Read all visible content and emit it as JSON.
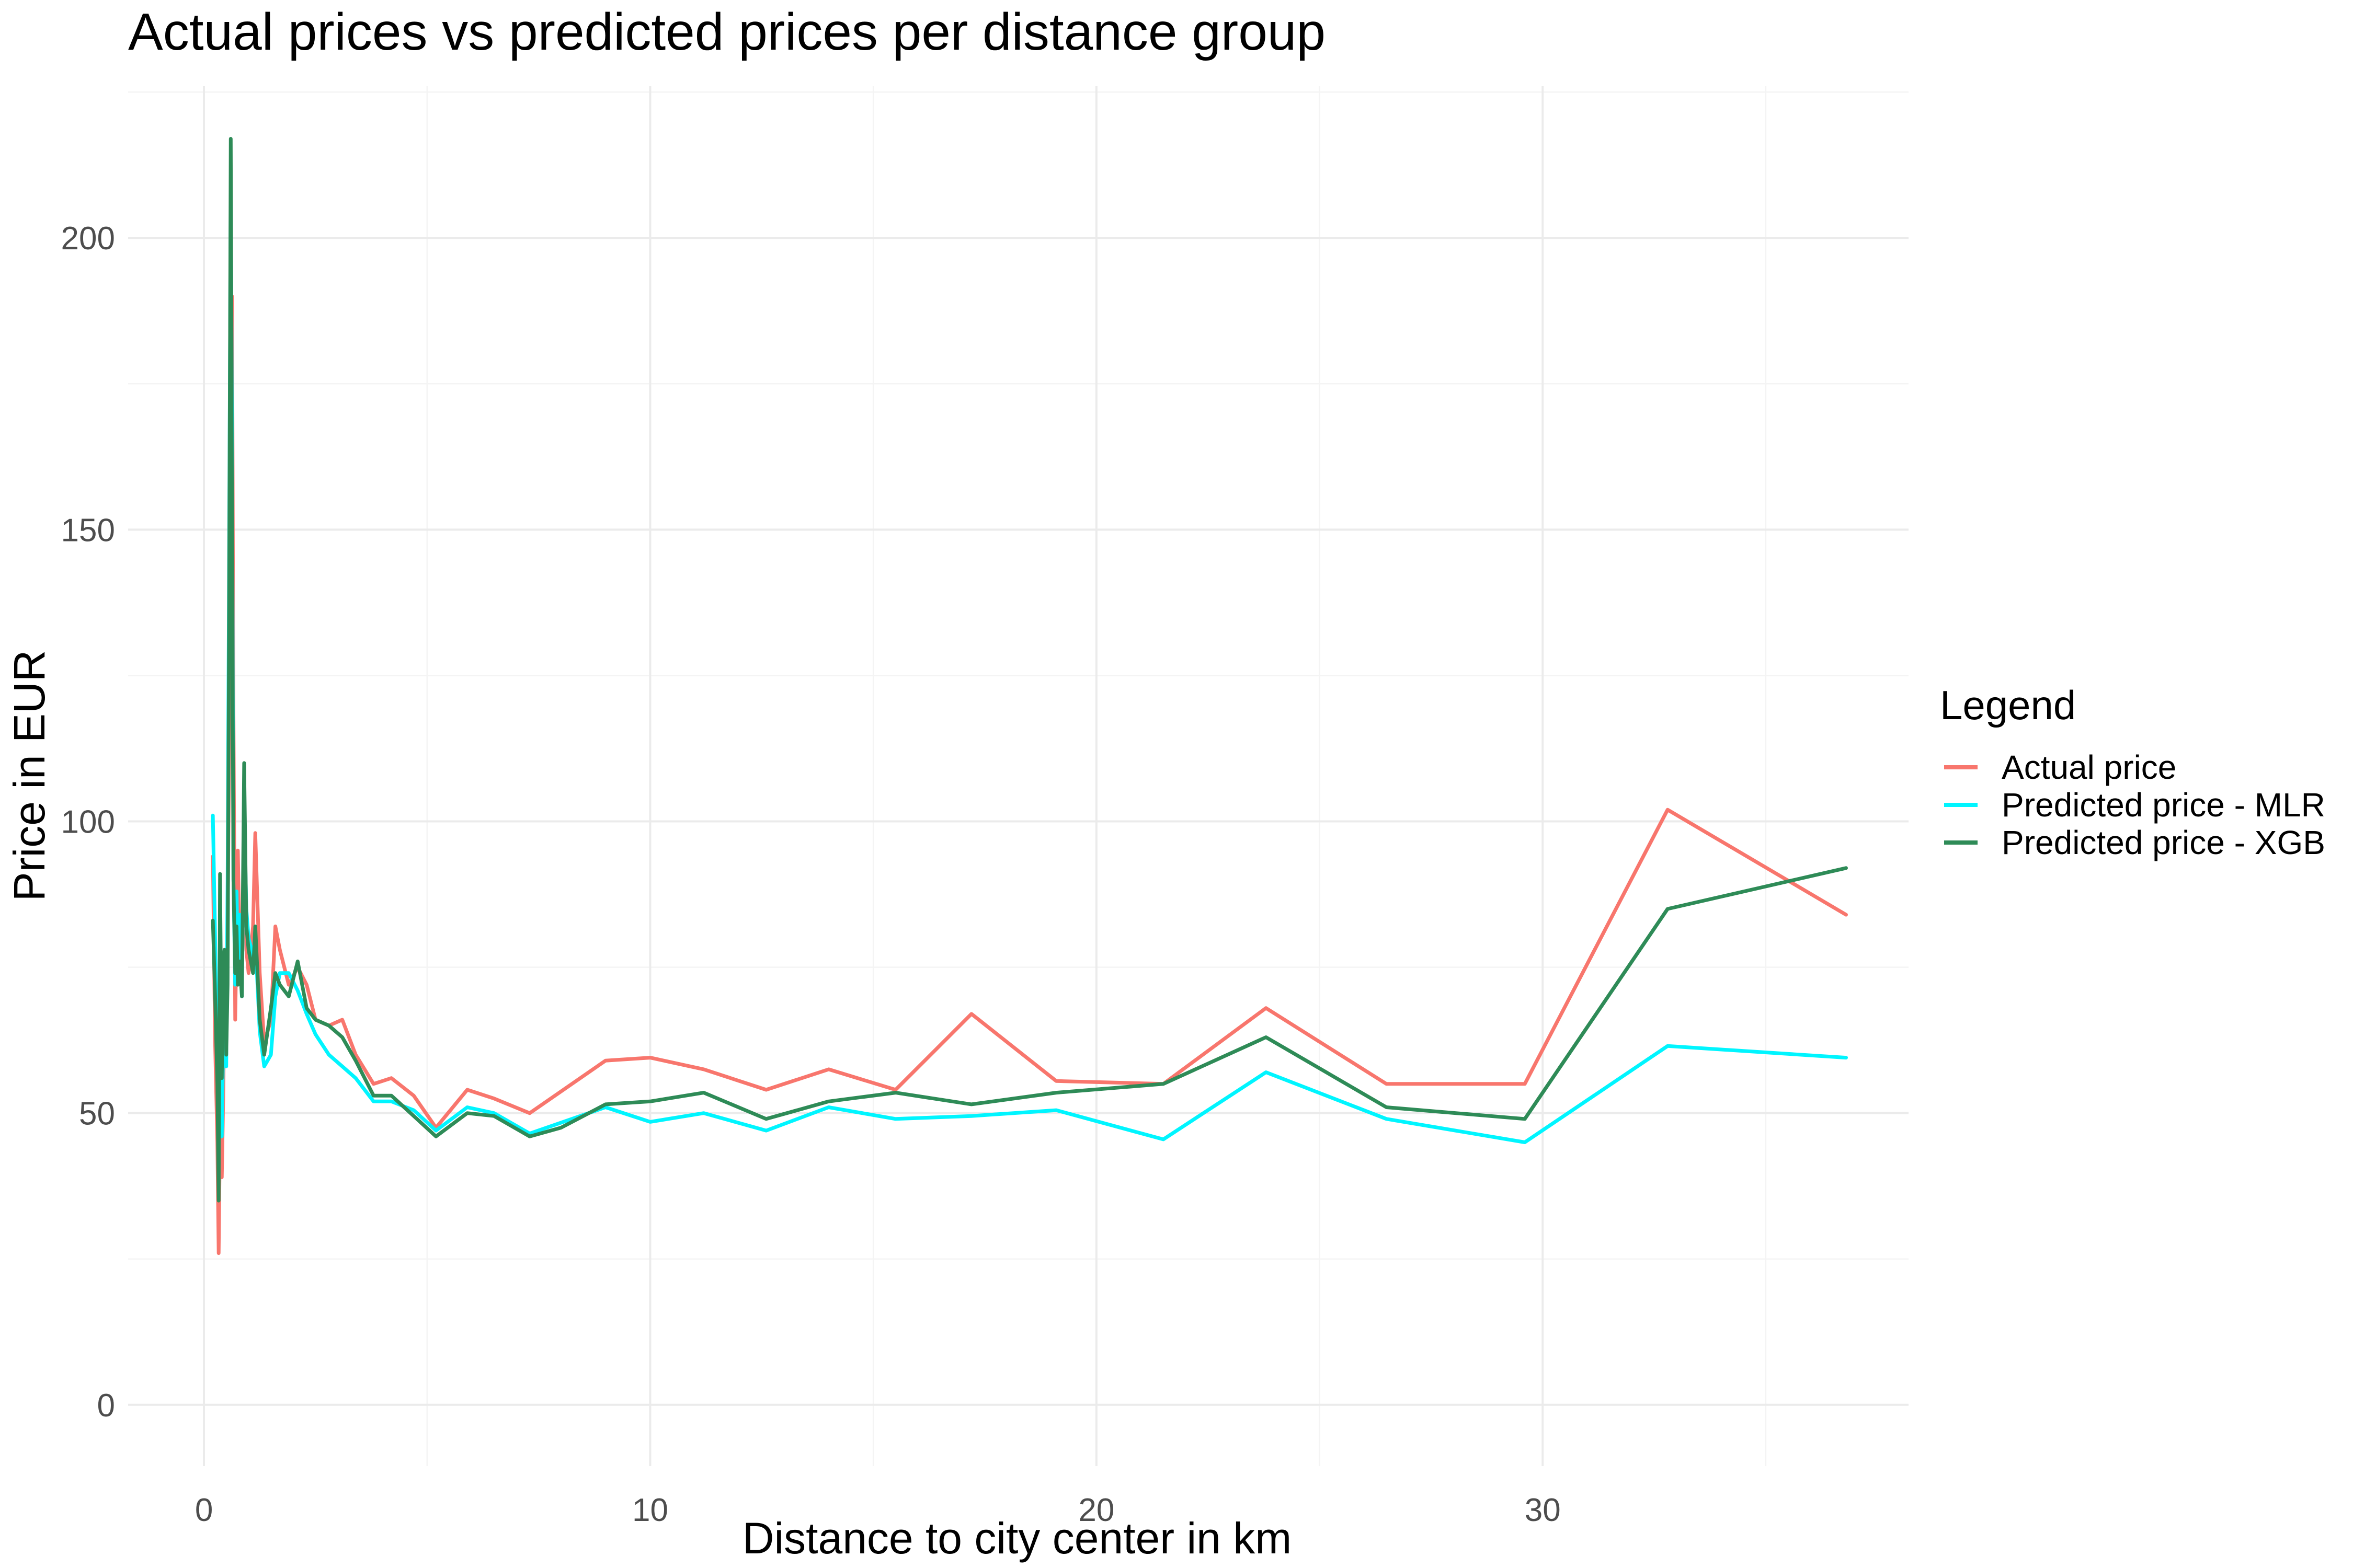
{
  "chart_data": {
    "type": "line",
    "title": "Actual prices vs predicted prices per distance group",
    "xlabel": "Distance to city center in km",
    "ylabel": "Price in EUR",
    "xlim": [
      -1.7,
      38.2
    ],
    "ylim": [
      -10.5,
      226
    ],
    "x_ticks": [
      0,
      10,
      20,
      30
    ],
    "x_tick_labels": [
      "0",
      "10",
      "20",
      "30"
    ],
    "y_ticks": [
      0,
      50,
      100,
      150,
      200
    ],
    "y_tick_labels": [
      "0",
      "50",
      "100",
      "150",
      "200"
    ],
    "grid": true,
    "legend": {
      "title": "Legend",
      "position": "right"
    },
    "series": [
      {
        "name": "Actual price",
        "color": "#F8766D",
        "points": [
          [
            0.2,
            94
          ],
          [
            0.25,
            62
          ],
          [
            0.3,
            45
          ],
          [
            0.33,
            26
          ],
          [
            0.36,
            48
          ],
          [
            0.4,
            39
          ],
          [
            0.43,
            52
          ],
          [
            0.46,
            70
          ],
          [
            0.5,
            60
          ],
          [
            0.53,
            80
          ],
          [
            0.56,
            110
          ],
          [
            0.6,
            150
          ],
          [
            0.63,
            190
          ],
          [
            0.66,
            120
          ],
          [
            0.7,
            66
          ],
          [
            0.73,
            80
          ],
          [
            0.76,
            95
          ],
          [
            0.8,
            78
          ],
          [
            0.85,
            72
          ],
          [
            0.9,
            100
          ],
          [
            0.95,
            78
          ],
          [
            1.0,
            74
          ],
          [
            1.1,
            82
          ],
          [
            1.15,
            98
          ],
          [
            1.25,
            74
          ],
          [
            1.35,
            62
          ],
          [
            1.5,
            66
          ],
          [
            1.6,
            82
          ],
          [
            1.7,
            78
          ],
          [
            1.9,
            72
          ],
          [
            2.1,
            75
          ],
          [
            2.3,
            72
          ],
          [
            2.5,
            66
          ],
          [
            2.8,
            65
          ],
          [
            3.1,
            66
          ],
          [
            3.4,
            60
          ],
          [
            3.8,
            55
          ],
          [
            4.2,
            56
          ],
          [
            4.7,
            53
          ],
          [
            5.2,
            47.5
          ],
          [
            5.9,
            54
          ],
          [
            6.5,
            52.5
          ],
          [
            7.3,
            50
          ],
          [
            9.0,
            59
          ],
          [
            10.0,
            59.5
          ],
          [
            11.2,
            57.5
          ],
          [
            12.6,
            54
          ],
          [
            14.0,
            57.5
          ],
          [
            15.5,
            54
          ],
          [
            17.2,
            67
          ],
          [
            19.1,
            55.5
          ],
          [
            21.5,
            55
          ],
          [
            23.8,
            68
          ],
          [
            26.5,
            55
          ],
          [
            29.6,
            55
          ],
          [
            32.8,
            102
          ],
          [
            36.8,
            84
          ]
        ]
      },
      {
        "name": "Predicted price - MLR",
        "color": "#00F5FF",
        "points": [
          [
            0.2,
            101
          ],
          [
            0.25,
            80
          ],
          [
            0.3,
            58
          ],
          [
            0.33,
            43
          ],
          [
            0.36,
            55
          ],
          [
            0.4,
            46
          ],
          [
            0.43,
            62
          ],
          [
            0.46,
            72
          ],
          [
            0.5,
            58
          ],
          [
            0.53,
            90
          ],
          [
            0.56,
            140
          ],
          [
            0.6,
            210
          ],
          [
            0.63,
            165
          ],
          [
            0.66,
            90
          ],
          [
            0.7,
            72
          ],
          [
            0.73,
            88
          ],
          [
            0.76,
            75
          ],
          [
            0.8,
            84
          ],
          [
            0.85,
            70
          ],
          [
            0.9,
            102
          ],
          [
            0.95,
            85
          ],
          [
            1.0,
            80
          ],
          [
            1.1,
            77
          ],
          [
            1.15,
            80
          ],
          [
            1.25,
            64
          ],
          [
            1.35,
            58
          ],
          [
            1.5,
            60
          ],
          [
            1.6,
            70
          ],
          [
            1.7,
            74
          ],
          [
            1.9,
            74
          ],
          [
            2.1,
            71
          ],
          [
            2.3,
            67
          ],
          [
            2.5,
            63.5
          ],
          [
            2.8,
            60
          ],
          [
            3.1,
            58
          ],
          [
            3.4,
            56
          ],
          [
            3.8,
            52
          ],
          [
            4.2,
            52
          ],
          [
            4.7,
            50.5
          ],
          [
            5.2,
            47
          ],
          [
            5.9,
            51
          ],
          [
            6.5,
            50
          ],
          [
            7.3,
            46.5
          ],
          [
            9.0,
            51
          ],
          [
            10.0,
            48.5
          ],
          [
            11.2,
            50
          ],
          [
            12.6,
            47
          ],
          [
            14.0,
            51
          ],
          [
            15.5,
            49
          ],
          [
            17.2,
            49.5
          ],
          [
            19.1,
            50.5
          ],
          [
            21.5,
            45.5
          ],
          [
            23.8,
            57
          ],
          [
            26.5,
            49
          ],
          [
            29.6,
            45
          ],
          [
            32.8,
            61.5
          ],
          [
            36.8,
            59.5
          ]
        ]
      },
      {
        "name": "Predicted price - XGB",
        "color": "#2E8B57",
        "points": [
          [
            0.2,
            83
          ],
          [
            0.25,
            70
          ],
          [
            0.3,
            55
          ],
          [
            0.33,
            35
          ],
          [
            0.36,
            91
          ],
          [
            0.4,
            56
          ],
          [
            0.43,
            74
          ],
          [
            0.46,
            78
          ],
          [
            0.5,
            60
          ],
          [
            0.53,
            72
          ],
          [
            0.56,
            130
          ],
          [
            0.6,
            217
          ],
          [
            0.63,
            150
          ],
          [
            0.66,
            90
          ],
          [
            0.7,
            74
          ],
          [
            0.73,
            82
          ],
          [
            0.76,
            72
          ],
          [
            0.8,
            76
          ],
          [
            0.85,
            70
          ],
          [
            0.9,
            110
          ],
          [
            0.95,
            82
          ],
          [
            1.0,
            78
          ],
          [
            1.1,
            74
          ],
          [
            1.15,
            82
          ],
          [
            1.25,
            66
          ],
          [
            1.35,
            60
          ],
          [
            1.5,
            68
          ],
          [
            1.6,
            74
          ],
          [
            1.7,
            72
          ],
          [
            1.9,
            70
          ],
          [
            2.1,
            76
          ],
          [
            2.3,
            68
          ],
          [
            2.5,
            66
          ],
          [
            2.8,
            65
          ],
          [
            3.1,
            63
          ],
          [
            3.4,
            59
          ],
          [
            3.8,
            53
          ],
          [
            4.2,
            53
          ],
          [
            4.7,
            49.5
          ],
          [
            5.2,
            46
          ],
          [
            5.9,
            50
          ],
          [
            6.5,
            49.5
          ],
          [
            7.3,
            46
          ],
          [
            8.0,
            47.5
          ],
          [
            9.0,
            51.5
          ],
          [
            10.0,
            52
          ],
          [
            11.2,
            53.5
          ],
          [
            12.6,
            49
          ],
          [
            14.0,
            52
          ],
          [
            15.5,
            53.5
          ],
          [
            17.2,
            51.5
          ],
          [
            19.1,
            53.5
          ],
          [
            21.5,
            55
          ],
          [
            23.8,
            63
          ],
          [
            26.5,
            51
          ],
          [
            29.6,
            49
          ],
          [
            32.8,
            85
          ],
          [
            36.8,
            92
          ]
        ]
      }
    ]
  }
}
